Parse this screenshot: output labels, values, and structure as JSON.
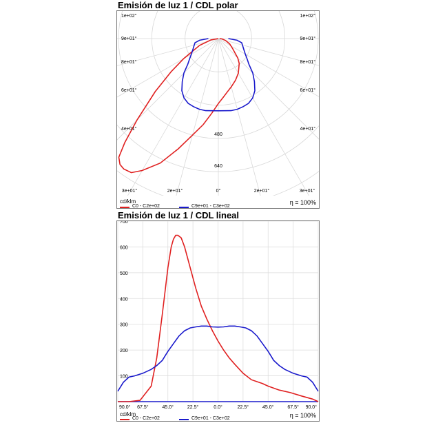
{
  "charts": {
    "polar": {
      "title": "Emisión de luz 1 / CDL polar",
      "unit": "cd/klm",
      "efficiency": "η = 100%",
      "angle_labels_left": [
        "1e+02°",
        "9e+01°",
        "8e+01°",
        "6e+01°",
        "4e+01°"
      ],
      "angle_labels_right": [
        "1e+02°",
        "9e+01°",
        "8e+01°",
        "6e+01°",
        "4e+01°"
      ],
      "bottom_labels": [
        "3e+01°",
        "2e+01°",
        "0°",
        "2e+01°",
        "3e+01°"
      ],
      "radial_labels": [
        "480",
        "640"
      ]
    },
    "linear": {
      "title": "Emisión de luz 1 / CDL lineal",
      "unit": "cd/klm",
      "efficiency": "η = 100%"
    }
  },
  "chart_data": [
    {
      "type": "line",
      "subtype": "polar",
      "title": "Emisión de luz 1 / CDL polar",
      "unit": "cd/klm",
      "rmax": 800,
      "series": [
        {
          "name": "C0 - C2e+02",
          "color": "#e02020",
          "points": [
            [
              -90,
              0
            ],
            [
              -80,
              30
            ],
            [
              -70,
              80
            ],
            [
              -60,
              160
            ],
            [
              -55,
              230
            ],
            [
              -50,
              330
            ],
            [
              -45,
              460
            ],
            [
              -42,
              560
            ],
            [
              -40,
              620
            ],
            [
              -38,
              640
            ],
            [
              -36,
              645
            ],
            [
              -33,
              640
            ],
            [
              -30,
              610
            ],
            [
              -25,
              550
            ],
            [
              -20,
              470
            ],
            [
              -15,
              400
            ],
            [
              -10,
              350
            ],
            [
              -5,
              300
            ],
            [
              0,
              260
            ],
            [
              5,
              235
            ],
            [
              10,
              215
            ],
            [
              15,
              200
            ],
            [
              22.5,
              180
            ],
            [
              30,
              160
            ],
            [
              40,
              130
            ],
            [
              45,
              110
            ],
            [
              55,
              70
            ],
            [
              65,
              50
            ],
            [
              75,
              30
            ],
            [
              85,
              15
            ],
            [
              90,
              5
            ]
          ]
        },
        {
          "name": "C9e+01 - C3e+02",
          "color": "#1a1acc",
          "points": [
            [
              -90,
              40
            ],
            [
              -85,
              75
            ],
            [
              -80,
              95
            ],
            [
              -75,
              100
            ],
            [
              -67.5,
              110
            ],
            [
              -60,
              125
            ],
            [
              -55,
              140
            ],
            [
              -50,
              160
            ],
            [
              -45,
              195
            ],
            [
              -40,
              225
            ],
            [
              -35,
              255
            ],
            [
              -30,
              275
            ],
            [
              -25,
              286
            ],
            [
              -20,
              290
            ],
            [
              -15,
              293
            ],
            [
              -10,
              293
            ],
            [
              -5,
              290
            ],
            [
              0,
              289
            ],
            [
              5,
              290
            ],
            [
              10,
              293
            ],
            [
              15,
              293
            ],
            [
              20,
              290
            ],
            [
              25,
              286
            ],
            [
              30,
              275
            ],
            [
              35,
              255
            ],
            [
              40,
              225
            ],
            [
              45,
              195
            ],
            [
              50,
              160
            ],
            [
              55,
              140
            ],
            [
              60,
              125
            ],
            [
              67.5,
              110
            ],
            [
              75,
              100
            ],
            [
              80,
              95
            ],
            [
              85,
              75
            ],
            [
              90,
              40
            ]
          ]
        }
      ]
    },
    {
      "type": "line",
      "title": "Emisión de luz 1 / CDL lineal",
      "xlabel": "",
      "ylabel": "cd/klm",
      "ylim": [
        0,
        700
      ],
      "xlim": [
        -90,
        90
      ],
      "yticks": [
        100,
        200,
        300,
        400,
        500,
        600,
        700
      ],
      "xticks": [
        "90.0°",
        "67.5°",
        "45.0°",
        "22.5°",
        "0.0°",
        "22.5°",
        "45.0°",
        "67.5°",
        "90.0°"
      ],
      "series": [
        {
          "name": "C0 - C2e+02",
          "color": "#e02020",
          "x": [
            -90,
            -80,
            -70,
            -60,
            -55,
            -50,
            -45,
            -42,
            -40,
            -38,
            -36,
            -33,
            -30,
            -25,
            -20,
            -15,
            -10,
            -5,
            0,
            5,
            10,
            15,
            22.5,
            30,
            40,
            45,
            55,
            65,
            75,
            85,
            90
          ],
          "y": [
            0,
            0,
            5,
            60,
            170,
            340,
            520,
            600,
            630,
            645,
            645,
            635,
            600,
            520,
            440,
            370,
            320,
            275,
            235,
            200,
            170,
            145,
            110,
            85,
            70,
            60,
            45,
            35,
            22,
            10,
            0
          ]
        },
        {
          "name": "C9e+01 - C3e+02",
          "color": "#1a1acc",
          "x": [
            -90,
            -85,
            -80,
            -75,
            -67.5,
            -60,
            -55,
            -50,
            -45,
            -40,
            -35,
            -30,
            -25,
            -20,
            -15,
            -10,
            -5,
            0,
            5,
            10,
            15,
            20,
            25,
            30,
            35,
            40,
            45,
            50,
            55,
            60,
            67.5,
            75,
            80,
            85,
            90
          ],
          "y": [
            40,
            75,
            95,
            100,
            110,
            125,
            140,
            160,
            195,
            225,
            255,
            275,
            286,
            290,
            293,
            293,
            290,
            289,
            290,
            293,
            293,
            290,
            286,
            275,
            255,
            225,
            195,
            160,
            140,
            125,
            110,
            100,
            95,
            75,
            40
          ]
        }
      ]
    }
  ]
}
